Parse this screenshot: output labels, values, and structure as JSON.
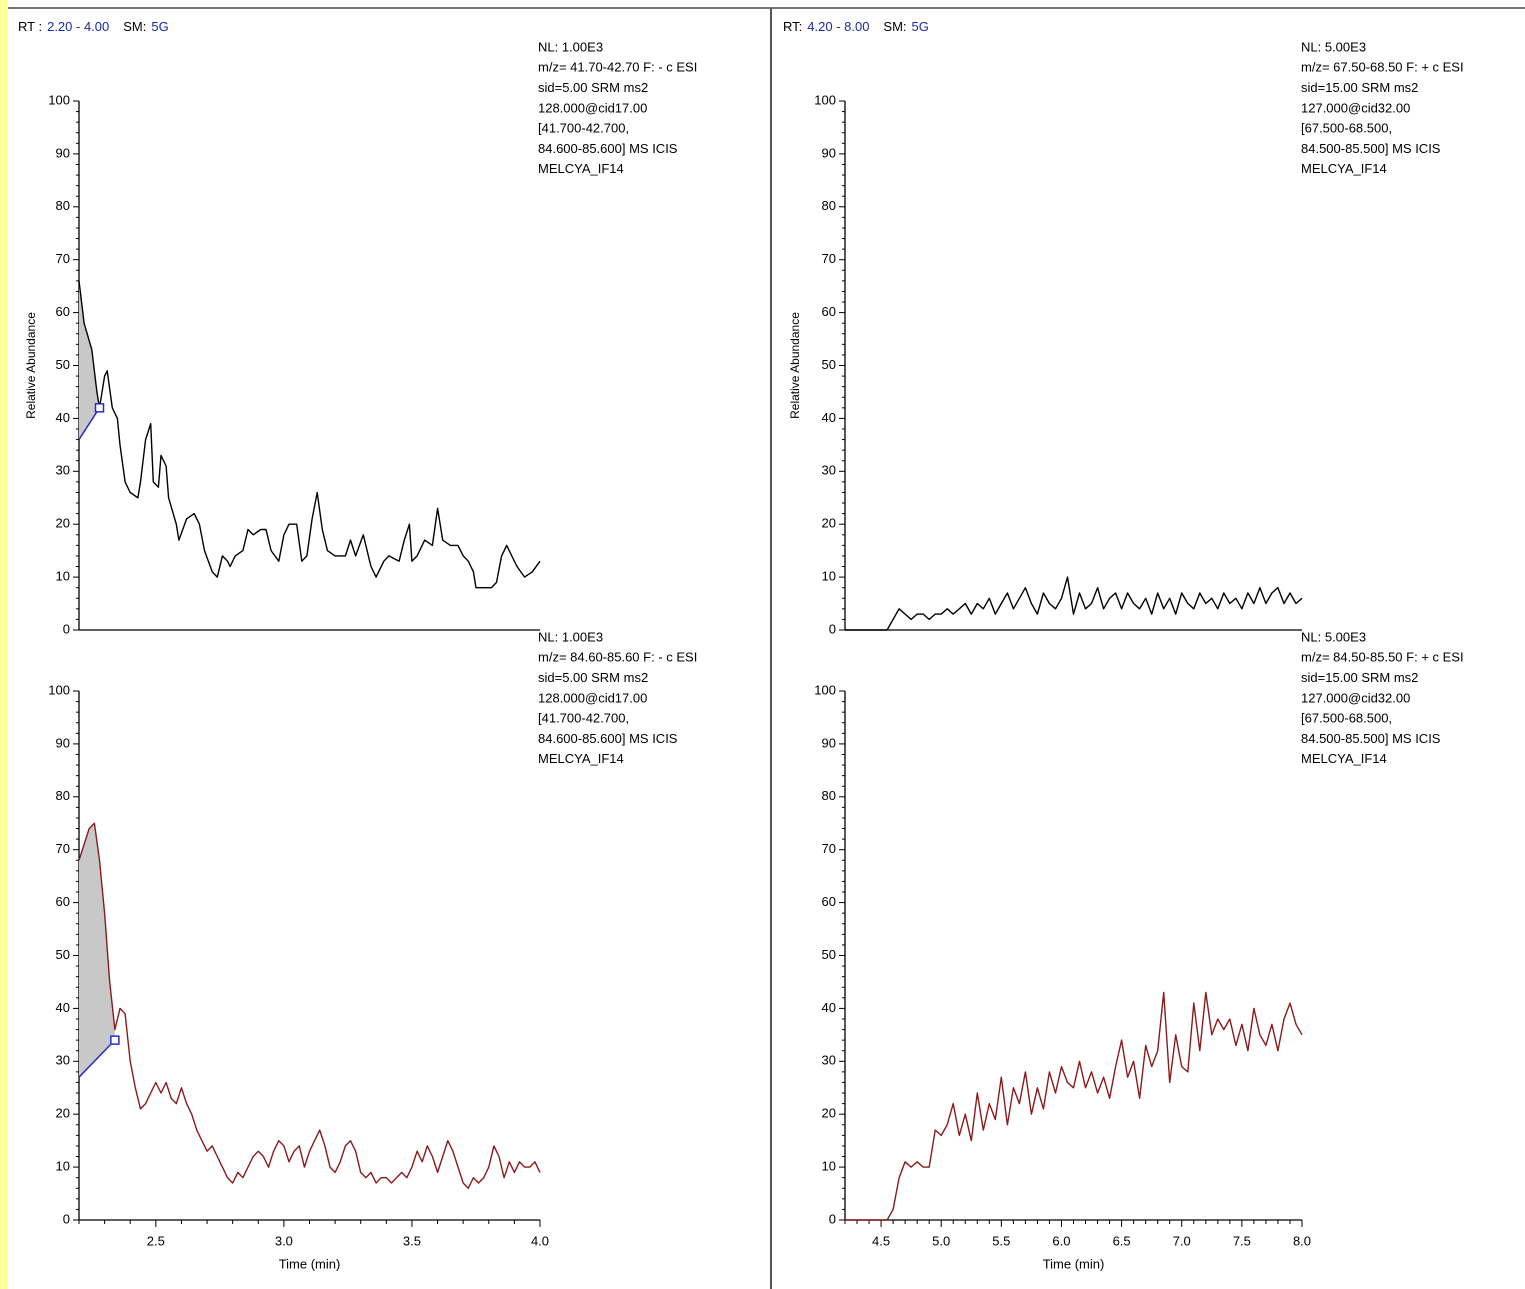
{
  "chart_data": [
    {
      "type": "line",
      "header": {
        "rt_label": "RT :",
        "rt_range": "2.20 - 4.00",
        "sm_label": "SM:",
        "sm": "5G"
      },
      "annotation": [
        "NL: 1.00E3",
        "m/z= 41.70-42.70 F: - c ESI",
        "sid=5.00  SRM ms2",
        "128.000@cid17.00",
        "[41.700-42.700,",
        "84.600-85.600]  MS  ICIS",
        "MELCYA_IF14"
      ],
      "ylabel": "Relative Abundance",
      "xlim": [
        2.2,
        4.0
      ],
      "ylim": [
        0,
        100
      ],
      "yticks": [
        0,
        10,
        20,
        30,
        40,
        50,
        60,
        70,
        80,
        90,
        100
      ],
      "color": "#000000",
      "x": [
        2.2,
        2.22,
        2.25,
        2.27,
        2.28,
        2.3,
        2.31,
        2.33,
        2.35,
        2.36,
        2.38,
        2.4,
        2.43,
        2.44,
        2.46,
        2.48,
        2.49,
        2.51,
        2.52,
        2.54,
        2.55,
        2.58,
        2.59,
        2.62,
        2.65,
        2.67,
        2.69,
        2.72,
        2.74,
        2.76,
        2.78,
        2.79,
        2.81,
        2.84,
        2.86,
        2.88,
        2.91,
        2.93,
        2.95,
        2.98,
        3,
        3.02,
        3.05,
        3.07,
        3.09,
        3.11,
        3.13,
        3.15,
        3.17,
        3.2,
        3.24,
        3.26,
        3.28,
        3.31,
        3.33,
        3.34,
        3.36,
        3.39,
        3.41,
        3.45,
        3.47,
        3.49,
        3.5,
        3.52,
        3.55,
        3.58,
        3.6,
        3.62,
        3.65,
        3.68,
        3.7,
        3.72,
        3.74,
        3.75,
        3.78,
        3.81,
        3.83,
        3.85,
        3.87,
        3.89,
        3.91,
        3.94,
        3.97,
        4
      ],
      "values": [
        66,
        58,
        53,
        45,
        42,
        48,
        49,
        42,
        40,
        35,
        28,
        26,
        25,
        28,
        36,
        39,
        28,
        27,
        33,
        31,
        25,
        20,
        17,
        21,
        22,
        20,
        15,
        11,
        10,
        14,
        13,
        12,
        14,
        15,
        19,
        18,
        19,
        19,
        15,
        13,
        18,
        20,
        20,
        13,
        14,
        21,
        26,
        19,
        15,
        14,
        14,
        17,
        14,
        18,
        14,
        12,
        10,
        13,
        14,
        13,
        17,
        20,
        13,
        14,
        17,
        16,
        23,
        17,
        16,
        16,
        14,
        13,
        11,
        8,
        8,
        8,
        9,
        14,
        16,
        14,
        12,
        10,
        11,
        13
      ],
      "peak": {
        "x": [
          2.2,
          2.28
        ],
        "baseline": [
          36,
          42
        ],
        "color": "#c8c8c8",
        "baseline_color": "#2b2bcc"
      }
    },
    {
      "type": "line",
      "header": {
        "rt_label": "RT:",
        "rt_range": "4.20 - 8.00",
        "sm_label": "SM:",
        "sm": "5G"
      },
      "annotation": [
        "NL: 5.00E3",
        "m/z= 67.50-68.50 F: + c ESI",
        "sid=15.00  SRM ms2",
        "127.000@cid32.00",
        "[67.500-68.500,",
        "84.500-85.500]  MS  ICIS",
        "MELCYA_IF14"
      ],
      "ylabel": "Relative Abundance",
      "xlim": [
        4.2,
        8.0
      ],
      "ylim": [
        0,
        100
      ],
      "yticks": [
        0,
        10,
        20,
        30,
        40,
        50,
        60,
        70,
        80,
        90,
        100
      ],
      "color": "#000000",
      "x": [
        4.2,
        4.25,
        4.3,
        4.35,
        4.4,
        4.45,
        4.5,
        4.55,
        4.6,
        4.65,
        4.7,
        4.75,
        4.8,
        4.85,
        4.9,
        4.95,
        5,
        5.05,
        5.1,
        5.15,
        5.2,
        5.25,
        5.3,
        5.35,
        5.4,
        5.45,
        5.5,
        5.55,
        5.6,
        5.65,
        5.7,
        5.75,
        5.8,
        5.85,
        5.9,
        5.95,
        6,
        6.05,
        6.1,
        6.15,
        6.2,
        6.25,
        6.3,
        6.35,
        6.4,
        6.45,
        6.5,
        6.55,
        6.6,
        6.65,
        6.7,
        6.75,
        6.8,
        6.85,
        6.9,
        6.95,
        7,
        7.05,
        7.1,
        7.15,
        7.2,
        7.25,
        7.3,
        7.35,
        7.4,
        7.45,
        7.5,
        7.55,
        7.6,
        7.65,
        7.7,
        7.75,
        7.8,
        7.85,
        7.9,
        7.95,
        8
      ],
      "values": [
        0,
        0,
        0,
        0,
        0,
        0,
        0,
        0,
        2,
        4,
        3,
        2,
        3,
        3,
        2,
        3,
        3,
        4,
        3,
        4,
        5,
        3,
        5,
        4,
        6,
        3,
        5,
        7,
        4,
        6,
        8,
        5,
        3,
        7,
        5,
        4,
        6,
        10,
        3,
        7,
        4,
        5,
        8,
        4,
        6,
        7,
        4,
        7,
        5,
        4,
        6,
        3,
        7,
        4,
        6,
        3,
        7,
        5,
        4,
        7,
        5,
        6,
        4,
        7,
        5,
        6,
        4,
        7,
        5,
        8,
        5,
        7,
        8,
        5,
        7,
        5,
        6
      ]
    },
    {
      "type": "line",
      "annotation": [
        "NL: 1.00E3",
        "m/z= 84.60-85.60 F: - c ESI",
        "sid=5.00  SRM ms2",
        "128.000@cid17.00",
        "[41.700-42.700,",
        "84.600-85.600]  MS  ICIS",
        "MELCYA_IF14"
      ],
      "xlabel": "Time (min)",
      "xlim": [
        2.2,
        4.0
      ],
      "ylim": [
        0,
        100
      ],
      "yticks": [
        0,
        10,
        20,
        30,
        40,
        50,
        60,
        70,
        80,
        90,
        100
      ],
      "xticks": [
        2.5,
        {
          "value": 3,
          "label": "3.0"
        },
        3.5,
        {
          "value": 4,
          "label": "4.0"
        }
      ],
      "color": "#8b1a1a",
      "x": [
        2.2,
        2.22,
        2.24,
        2.26,
        2.28,
        2.3,
        2.32,
        2.34,
        2.36,
        2.38,
        2.4,
        2.42,
        2.44,
        2.46,
        2.48,
        2.5,
        2.52,
        2.54,
        2.56,
        2.58,
        2.6,
        2.62,
        2.64,
        2.66,
        2.68,
        2.7,
        2.72,
        2.74,
        2.76,
        2.78,
        2.8,
        2.82,
        2.84,
        2.86,
        2.88,
        2.9,
        2.92,
        2.94,
        2.96,
        2.98,
        3,
        3.02,
        3.04,
        3.06,
        3.08,
        3.1,
        3.12,
        3.14,
        3.16,
        3.18,
        3.2,
        3.22,
        3.24,
        3.26,
        3.28,
        3.3,
        3.32,
        3.34,
        3.36,
        3.38,
        3.4,
        3.42,
        3.44,
        3.46,
        3.48,
        3.5,
        3.52,
        3.54,
        3.56,
        3.58,
        3.6,
        3.62,
        3.64,
        3.66,
        3.68,
        3.7,
        3.72,
        3.74,
        3.76,
        3.78,
        3.8,
        3.82,
        3.84,
        3.86,
        3.88,
        3.9,
        3.92,
        3.94,
        3.96,
        3.98,
        4
      ],
      "values": [
        68,
        71,
        74,
        75,
        68,
        58,
        45,
        36,
        40,
        39,
        30,
        25,
        21,
        22,
        24,
        26,
        24,
        26,
        23,
        22,
        25,
        22,
        20,
        17,
        15,
        13,
        14,
        12,
        10,
        8,
        7,
        9,
        8,
        10,
        12,
        13,
        12,
        10,
        13,
        15,
        14,
        11,
        13,
        14,
        10,
        13,
        15,
        17,
        14,
        10,
        9,
        11,
        14,
        15,
        13,
        9,
        8,
        9,
        7,
        8,
        8,
        7,
        8,
        9,
        8,
        10,
        13,
        11,
        14,
        12,
        9,
        12,
        15,
        13,
        10,
        7,
        6,
        8,
        7,
        8,
        10,
        14,
        12,
        8,
        11,
        9,
        11,
        10,
        10,
        11,
        9
      ],
      "peak": {
        "x": [
          2.2,
          2.34
        ],
        "baseline": [
          27,
          34
        ],
        "color": "#c8c8c8",
        "baseline_color": "#2b2bcc"
      }
    },
    {
      "type": "line",
      "annotation": [
        "NL: 5.00E3",
        "m/z= 84.50-85.50 F: + c ESI",
        "sid=15.00  SRM ms2",
        "127.000@cid32.00",
        "[67.500-68.500,",
        "84.500-85.500]  MS  ICIS",
        "MELCYA_IF14"
      ],
      "xlabel": "Time (min)",
      "xlim": [
        4.2,
        8.0
      ],
      "ylim": [
        0,
        100
      ],
      "yticks": [
        0,
        10,
        20,
        30,
        40,
        50,
        60,
        70,
        80,
        90,
        100
      ],
      "xticks": [
        4.5,
        {
          "value": 5,
          "label": "5.0"
        },
        5.5,
        {
          "value": 6,
          "label": "6.0"
        },
        6.5,
        {
          "value": 7,
          "label": "7.0"
        },
        7.5,
        {
          "value": 8,
          "label": "8.0"
        }
      ],
      "color": "#8b1a1a",
      "x": [
        4.2,
        4.25,
        4.3,
        4.35,
        4.4,
        4.45,
        4.5,
        4.55,
        4.6,
        4.65,
        4.7,
        4.75,
        4.8,
        4.85,
        4.9,
        4.95,
        5,
        5.05,
        5.1,
        5.15,
        5.2,
        5.25,
        5.3,
        5.35,
        5.4,
        5.45,
        5.5,
        5.55,
        5.6,
        5.65,
        5.7,
        5.75,
        5.8,
        5.85,
        5.9,
        5.95,
        6,
        6.05,
        6.1,
        6.15,
        6.2,
        6.25,
        6.3,
        6.35,
        6.4,
        6.45,
        6.5,
        6.55,
        6.6,
        6.65,
        6.7,
        6.75,
        6.8,
        6.85,
        6.9,
        6.95,
        7,
        7.05,
        7.1,
        7.15,
        7.2,
        7.25,
        7.3,
        7.35,
        7.4,
        7.45,
        7.5,
        7.55,
        7.6,
        7.65,
        7.7,
        7.75,
        7.8,
        7.85,
        7.9,
        7.95,
        8
      ],
      "values": [
        0,
        0,
        0,
        0,
        0,
        0,
        0,
        0,
        2,
        8,
        11,
        10,
        11,
        10,
        10,
        17,
        16,
        18,
        22,
        16,
        20,
        15,
        24,
        17,
        22,
        19,
        27,
        18,
        25,
        22,
        28,
        20,
        25,
        21,
        28,
        24,
        29,
        26,
        25,
        30,
        25,
        28,
        24,
        27,
        23,
        29,
        34,
        27,
        30,
        23,
        33,
        29,
        32,
        43,
        26,
        35,
        29,
        28,
        41,
        32,
        43,
        35,
        38,
        36,
        38,
        33,
        37,
        32,
        40,
        35,
        33,
        37,
        32,
        38,
        41,
        37,
        35
      ]
    }
  ]
}
